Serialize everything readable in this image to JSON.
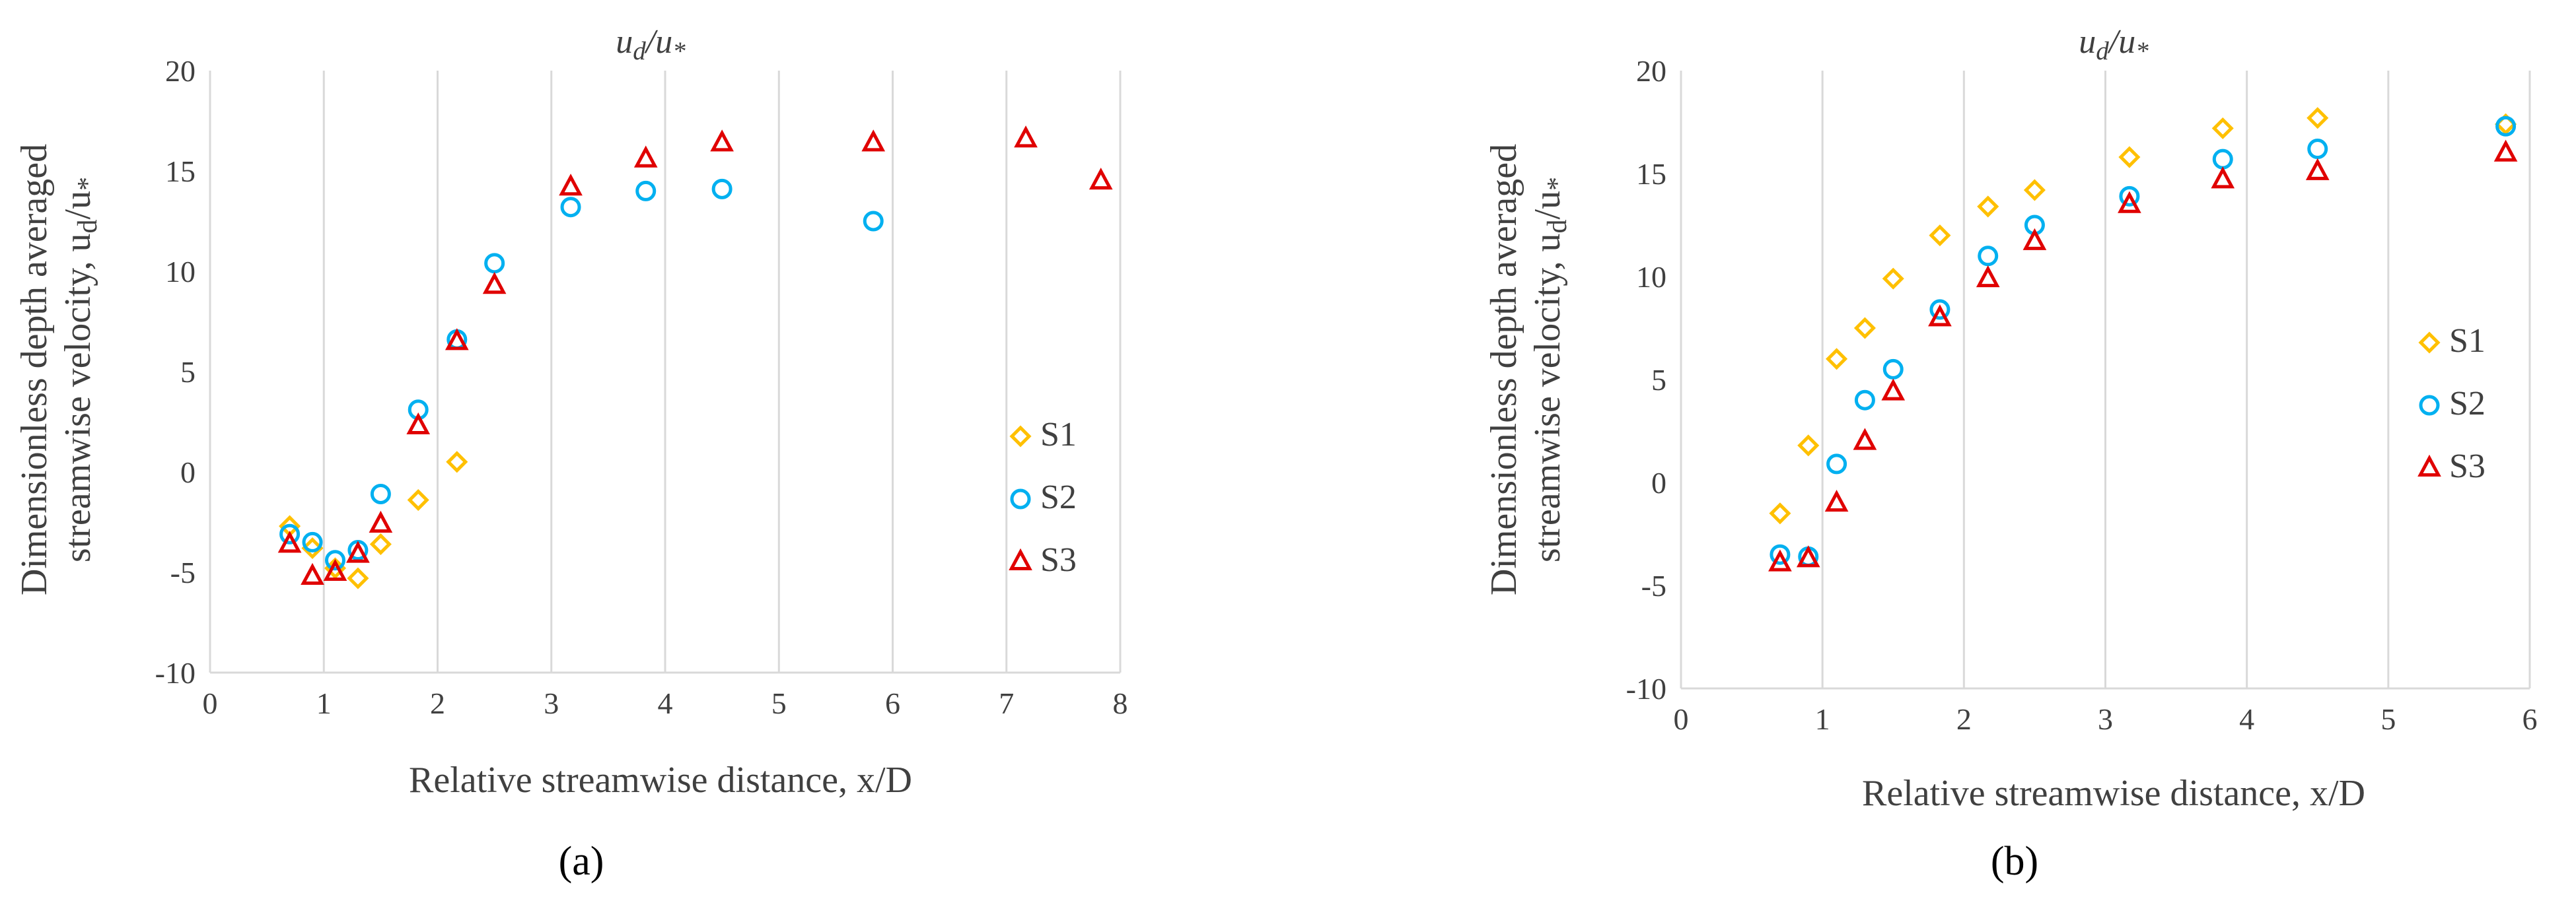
{
  "figure": {
    "caption_a": "(a)",
    "caption_b": "(b)"
  },
  "chart_data": [
    {
      "type": "scatter",
      "title": "u_d/u_*",
      "xlabel": "Relative streamwise distance, x/D",
      "ylabel": "Dimensionless depth averaged streamwise velocity, u_d/u_*",
      "xlim": [
        0,
        8
      ],
      "ylim": [
        -10,
        20
      ],
      "xticks": [
        0,
        1,
        2,
        3,
        4,
        5,
        6,
        7,
        8
      ],
      "yticks": [
        -10,
        -5,
        0,
        5,
        10,
        15,
        20
      ],
      "grid": "vertical",
      "legend_position": "right",
      "series": [
        {
          "name": "S1",
          "color": "#FFC000",
          "marker": "diamond",
          "x": [
            0.7,
            0.9,
            1.1,
            1.3,
            1.5,
            1.83,
            2.17
          ],
          "y": [
            -2.7,
            -3.8,
            -4.8,
            -5.3,
            -3.6,
            -1.4,
            0.5
          ]
        },
        {
          "name": "S2",
          "color": "#00B0F0",
          "marker": "circle",
          "x": [
            0.7,
            0.9,
            1.1,
            1.3,
            1.5,
            1.83,
            2.17,
            2.5,
            3.17,
            3.83,
            4.5,
            5.83
          ],
          "y": [
            -3.1,
            -3.5,
            -4.4,
            -3.9,
            -1.1,
            3.1,
            6.6,
            10.4,
            13.2,
            14.0,
            14.1,
            12.5
          ]
        },
        {
          "name": "S3",
          "color": "#E00000",
          "marker": "triangle",
          "x": [
            0.7,
            0.9,
            1.1,
            1.3,
            1.5,
            1.83,
            2.17,
            2.5,
            3.17,
            3.83,
            4.5,
            5.83,
            7.17,
            7.83
          ],
          "y": [
            -3.6,
            -5.2,
            -5.0,
            -4.1,
            -2.6,
            2.3,
            6.5,
            9.3,
            14.2,
            15.6,
            16.4,
            16.4,
            16.6,
            14.5
          ]
        }
      ]
    },
    {
      "type": "scatter",
      "title": "u_d/u_*",
      "xlabel": "Relative streamwise distance, x/D",
      "ylabel": "Dimensionless depth averaged streamwise velocity, u_d/u_*",
      "xlim": [
        0,
        6
      ],
      "ylim": [
        -10,
        20
      ],
      "xticks": [
        0,
        1,
        2,
        3,
        4,
        5,
        6
      ],
      "yticks": [
        -10,
        -5,
        0,
        5,
        10,
        15,
        20
      ],
      "grid": "vertical",
      "legend_position": "right",
      "series": [
        {
          "name": "S1",
          "color": "#FFC000",
          "marker": "diamond",
          "x": [
            0.7,
            0.9,
            1.1,
            1.3,
            1.5,
            1.83,
            2.17,
            2.5,
            3.17,
            3.83,
            4.5,
            5.83
          ],
          "y": [
            -1.5,
            1.8,
            6.0,
            7.5,
            9.9,
            12.0,
            13.4,
            14.2,
            15.8,
            17.2,
            17.7,
            17.4
          ]
        },
        {
          "name": "S2",
          "color": "#00B0F0",
          "marker": "circle",
          "x": [
            0.7,
            0.9,
            1.1,
            1.3,
            1.5,
            1.83,
            2.17,
            2.5,
            3.17,
            3.83,
            4.5,
            5.83
          ],
          "y": [
            -3.5,
            -3.6,
            0.9,
            4.0,
            5.5,
            8.4,
            11.0,
            12.5,
            13.9,
            15.7,
            16.2,
            17.3
          ]
        },
        {
          "name": "S3",
          "color": "#E00000",
          "marker": "triangle",
          "x": [
            0.7,
            0.9,
            1.1,
            1.3,
            1.5,
            1.83,
            2.17,
            2.5,
            3.17,
            3.83,
            4.5,
            5.83
          ],
          "y": [
            -3.9,
            -3.7,
            -1.0,
            2.0,
            4.4,
            8.0,
            9.9,
            11.7,
            13.5,
            14.7,
            15.1,
            16.0
          ]
        }
      ]
    }
  ]
}
